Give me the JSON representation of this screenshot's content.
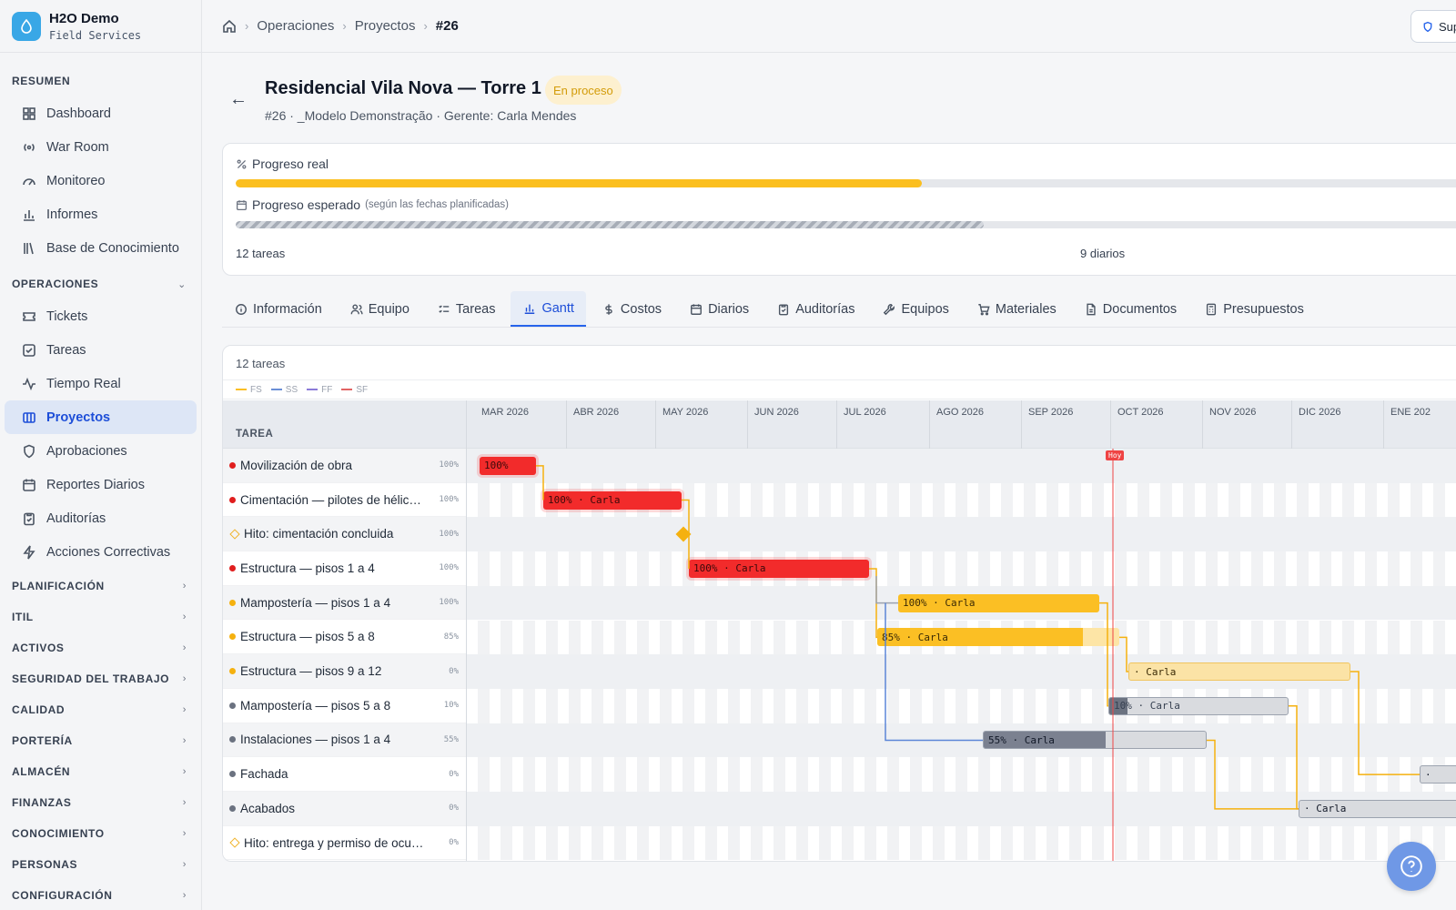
{
  "brand": {
    "name": "H2O Demo",
    "subtitle": "Field Services"
  },
  "sidebar": {
    "sections": [
      {
        "label": "RESUMEN",
        "items": [
          "Dashboard",
          "War Room",
          "Monitoreo",
          "Informes",
          "Base de Conocimiento"
        ]
      },
      {
        "label": "OPERACIONES",
        "items": [
          "Tickets",
          "Tareas",
          "Tiempo Real",
          "Proyectos",
          "Aprobaciones",
          "Reportes Diarios",
          "Auditorías",
          "Acciones Correctivas"
        ]
      },
      {
        "label": "PLANIFICACIÓN"
      },
      {
        "label": "ITIL"
      },
      {
        "label": "ACTIVOS"
      },
      {
        "label": "SEGURIDAD DEL TRABAJO"
      },
      {
        "label": "CALIDAD"
      },
      {
        "label": "PORTERÍA"
      },
      {
        "label": "ALMACÉN"
      },
      {
        "label": "FINANZAS"
      },
      {
        "label": "CONOCIMIENTO"
      },
      {
        "label": "PERSONAS"
      },
      {
        "label": "CONFIGURACIÓN"
      }
    ],
    "active": "Proyectos"
  },
  "breadcrumb": [
    "Operaciones",
    "Proyectos",
    "#26"
  ],
  "support_button": "Sup",
  "project": {
    "title": "Residencial Vila Nova — Torre 1",
    "status": "En proceso",
    "subtitle": "#26 · _Modelo Demonstração · Gerente: Carla Mendes"
  },
  "progress": {
    "real_label": "Progreso real",
    "real_value": 0.55,
    "expected_label": "Progreso esperado",
    "expected_note": "(según las fechas planificadas)",
    "expected_value": 0.6,
    "tasks_count": "12 tareas",
    "diaries_count": "9 diarios"
  },
  "tabs": [
    "Información",
    "Equipo",
    "Tareas",
    "Gantt",
    "Costos",
    "Diarios",
    "Auditorías",
    "Equipos",
    "Materiales",
    "Documentos",
    "Presupuestos"
  ],
  "active_tab": "Gantt",
  "gantt": {
    "count": "12 tareas",
    "legend": [
      "FS",
      "SS",
      "FF",
      "SF"
    ],
    "task_header": "TAREA",
    "months": [
      "MAR 2026",
      "ABR 2026",
      "MAY 2026",
      "JUN 2026",
      "JUL 2026",
      "AGO 2026",
      "SEP 2026",
      "OCT 2026",
      "NOV 2026",
      "DIC 2026",
      "ENE 202"
    ],
    "today_label": "Hoy",
    "tasks": [
      {
        "name": "Movilización de obra",
        "pct": "100%",
        "bar": "100%",
        "marker": "red"
      },
      {
        "name": "Cimentación — pilotes de hélice …",
        "pct": "100%",
        "bar": "100% · Carla",
        "marker": "red"
      },
      {
        "name": "Hito: cimentación concluida",
        "pct": "100%",
        "bar": "",
        "marker": "milestone"
      },
      {
        "name": "Estructura — pisos 1 a 4",
        "pct": "100%",
        "bar": "100% · Carla",
        "marker": "red"
      },
      {
        "name": "Mampostería — pisos 1 a 4",
        "pct": "100%",
        "bar": "100% · Carla",
        "marker": "amber"
      },
      {
        "name": "Estructura — pisos 5 a 8",
        "pct": "85%",
        "bar": "85% · Carla",
        "marker": "amber"
      },
      {
        "name": "Estructura — pisos 9 a 12",
        "pct": "0%",
        "bar": "· Carla",
        "marker": "amber"
      },
      {
        "name": "Mampostería — pisos 5 a 8",
        "pct": "10%",
        "bar": "10% · Carla",
        "marker": "gray"
      },
      {
        "name": "Instalaciones — pisos 1 a 4",
        "pct": "55%",
        "bar": "55% · Carla",
        "marker": "gray"
      },
      {
        "name": "Fachada",
        "pct": "0%",
        "bar": "·",
        "marker": "gray"
      },
      {
        "name": "Acabados",
        "pct": "0%",
        "bar": "· Carla",
        "marker": "gray"
      },
      {
        "name": "Hito: entrega y permiso de ocup…",
        "pct": "0%",
        "bar": "",
        "marker": "milestone"
      }
    ]
  },
  "colors": {
    "accent": "#2563eb",
    "red": "#f23030",
    "amber": "#fbbf24",
    "gray": "#9ca3af",
    "today": "#ef4444"
  }
}
